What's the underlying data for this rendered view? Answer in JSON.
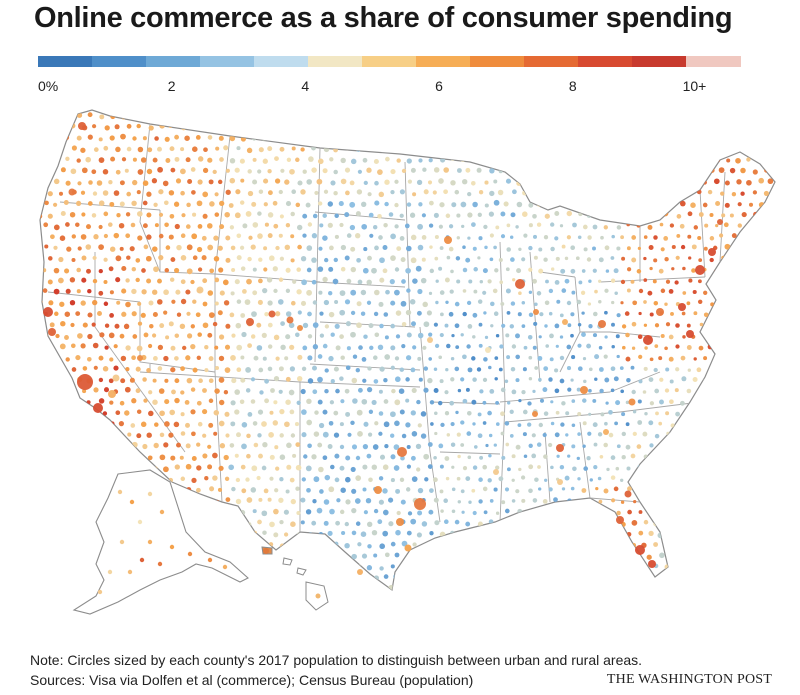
{
  "title": "Online commerce as a share of consumer spending",
  "legend": {
    "ticks": [
      "0%",
      "2",
      "4",
      "6",
      "8",
      "10+"
    ],
    "tick_values": [
      0,
      2,
      4,
      6,
      8,
      10
    ],
    "range": [
      0,
      10.5
    ],
    "colors": [
      "#3a78b8",
      "#4f8fc9",
      "#6ea9d6",
      "#95c3e3",
      "#bfdcee",
      "#f2e7c4",
      "#f7cf86",
      "#f6ad55",
      "#ef8c3c",
      "#e56a33",
      "#d84a30",
      "#c83a2e",
      "#f0c8c0"
    ]
  },
  "map": {
    "region_name": "Contiguous United States, Alaska and Hawaii",
    "color_scale": {
      "low": "#3f80c2",
      "mid_low": "#8fc0e3",
      "mid": "#f3e3b8",
      "mid_high": "#f4a24c",
      "high": "#d0382b"
    }
  },
  "note": "Note: Circles sized by each county's 2017 population to distinguish between urban and rural areas.",
  "sources": "Sources: Visa via Dolfen et al (commerce); Census Bureau (population)",
  "credit": "THE WASHINGTON POST"
}
